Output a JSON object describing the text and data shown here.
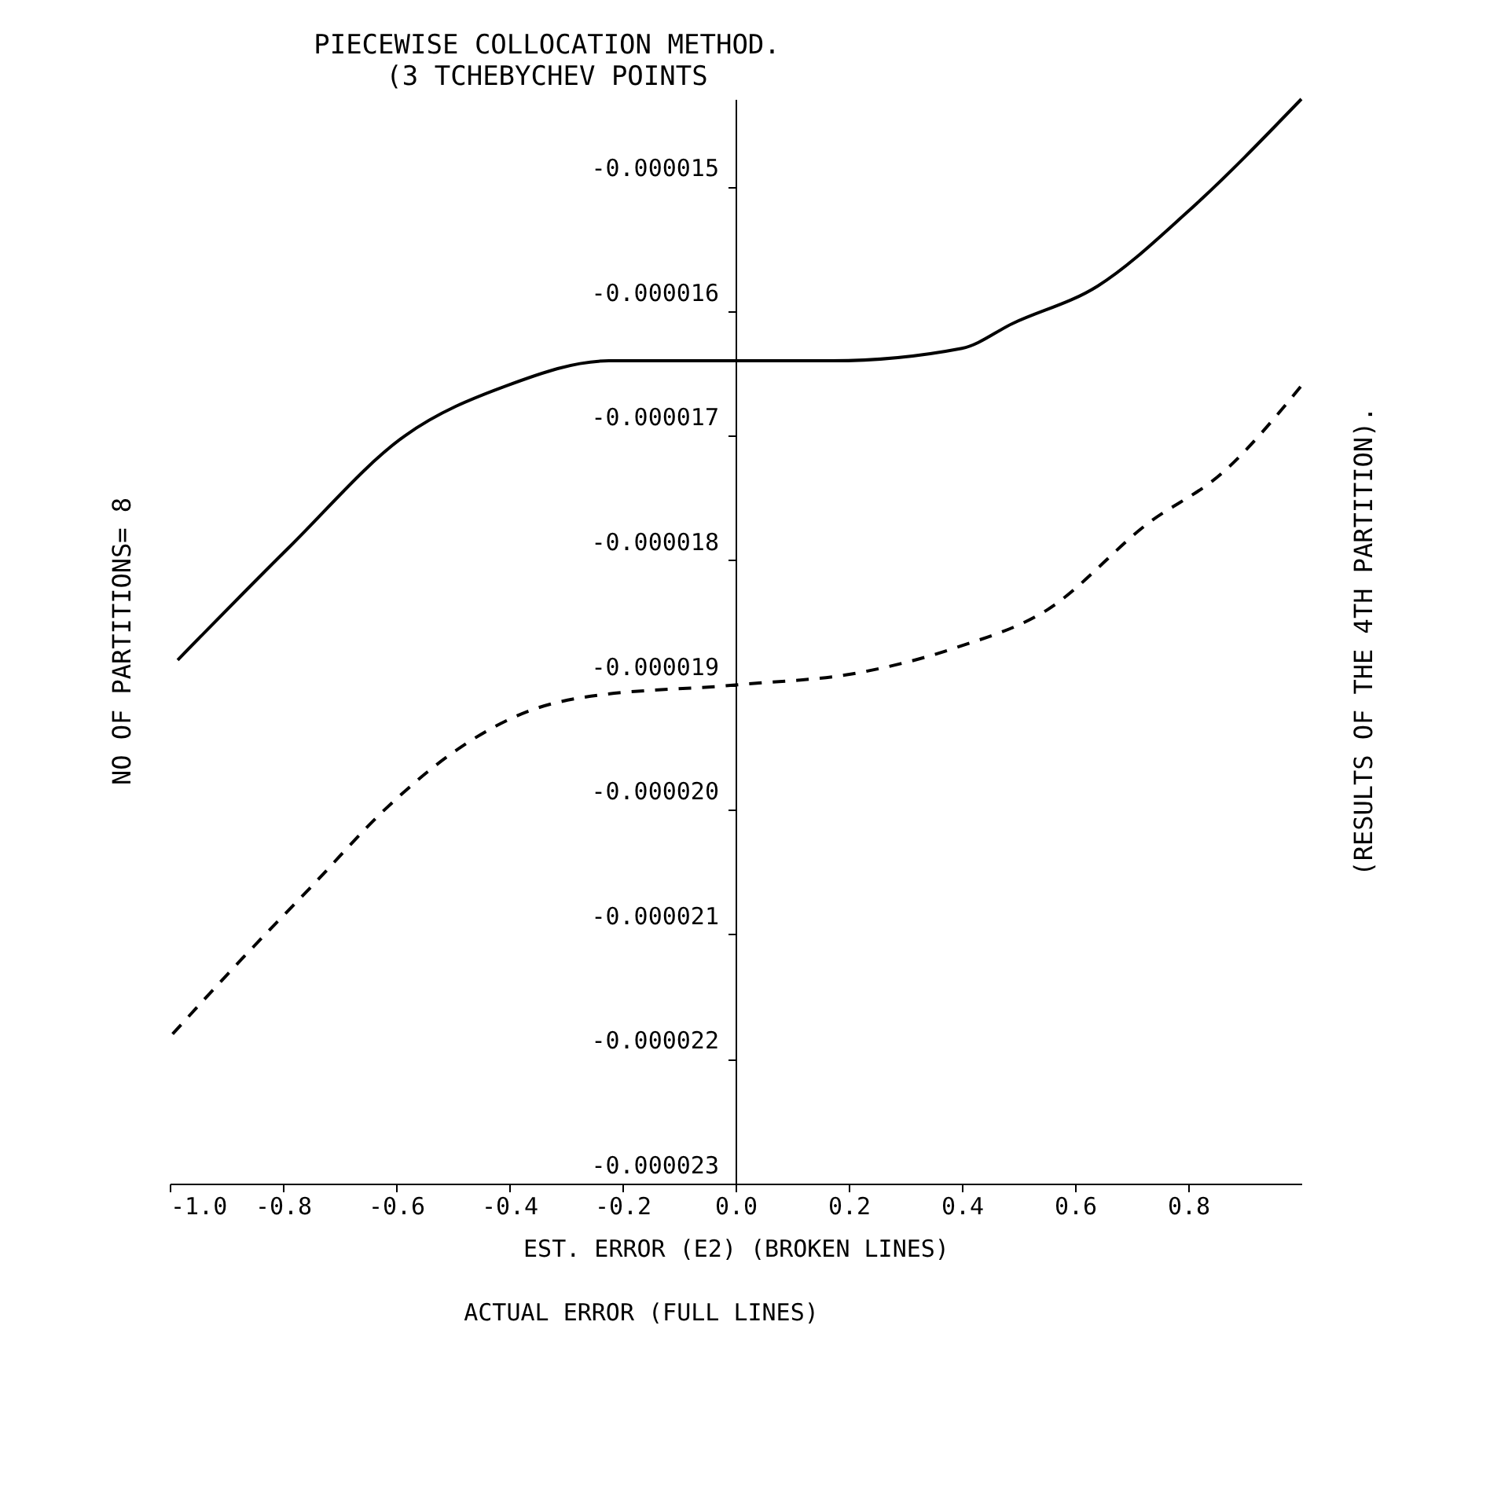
{
  "chart_data": {
    "type": "line",
    "title": "PIECEWISE COLLOCATION METHOD.",
    "subtitle": "(3 TCHEBYCHEV POINTS",
    "xlabel": "EST. ERROR (E2) (BROKEN LINES)",
    "annotations": [
      "NO OF PARTITIONS= 8",
      "(RESULTS OF THE 4TH PARTITION).",
      "ACTUAL ERROR (FULL LINES)"
    ],
    "xlim": [
      -1.0,
      1.0
    ],
    "xticks": [
      {
        "value": -1.0,
        "label": "-1.0"
      },
      {
        "value": -0.8,
        "label": "-0.8"
      },
      {
        "value": -0.6,
        "label": "-0.6"
      },
      {
        "value": -0.4,
        "label": "-0.4"
      },
      {
        "value": -0.2,
        "label": "-0.2"
      },
      {
        "value": 0.0,
        "label": "0.0"
      },
      {
        "value": 0.2,
        "label": "0.2"
      },
      {
        "value": 0.4,
        "label": "0.4"
      },
      {
        "value": 0.6,
        "label": "0.6"
      },
      {
        "value": 0.8,
        "label": "0.8"
      }
    ],
    "ylim": [
      -2.3e-05,
      -1.43e-05
    ],
    "yticks": [
      {
        "value": -2.3e-05,
        "label": "-0.000023"
      },
      {
        "value": -2.2e-05,
        "label": "-0.000022"
      },
      {
        "value": -2.1e-05,
        "label": "-0.000021"
      },
      {
        "value": -2e-05,
        "label": "-0.000020"
      },
      {
        "value": -1.9e-05,
        "label": "-0.000019"
      },
      {
        "value": -1.8e-05,
        "label": "-0.000018"
      },
      {
        "value": -1.7e-05,
        "label": "-0.000017"
      },
      {
        "value": -1.6e-05,
        "label": "-0.000016"
      },
      {
        "value": -1.5e-05,
        "label": "-0.000015"
      }
    ],
    "grid": false,
    "legend": false,
    "marker": "none",
    "series": [
      {
        "color": "#000000",
        "line_style": "solid",
        "x": [
          -0.986,
          -0.79,
          -0.584,
          -0.405,
          -0.224,
          0.0,
          0.17,
          0.4,
          0.49,
          0.64,
          0.8,
          1.0
        ],
        "values": [
          -1.88e-05,
          -1.79e-05,
          -1.7e-05,
          -1.66e-05,
          -1.64e-05,
          -1.64e-05,
          -1.64e-05,
          -1.63e-05,
          -1.61e-05,
          -1.58e-05,
          -1.52e-05,
          -1.43e-05
        ]
      },
      {
        "color": "#000000",
        "line_style": "dashed",
        "x": [
          -0.995,
          -0.873,
          -0.746,
          -0.62,
          -0.486,
          -0.36,
          -0.27,
          0.0,
          0.22,
          0.39,
          0.55,
          0.73,
          0.86,
          1.0
        ],
        "values": [
          -2.18e-05,
          -2.12e-05,
          -2.06e-05,
          -2e-05,
          -1.95e-05,
          -1.92e-05,
          -1.91e-05,
          -1.9e-05,
          -1.89e-05,
          -1.87e-05,
          -1.84e-05,
          -1.77e-05,
          -1.73e-05,
          -1.66e-05
        ]
      }
    ]
  }
}
